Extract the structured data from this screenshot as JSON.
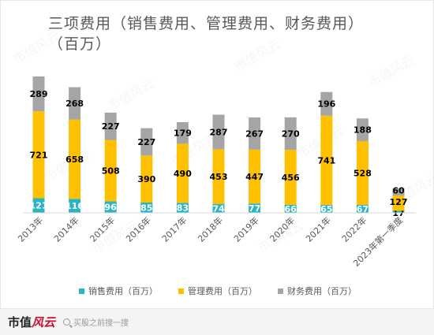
{
  "chart_data": {
    "type": "bar",
    "stacked": true,
    "title": "三项费用（销售费用、管理费用、财务费用）（百万）",
    "categories": [
      "2013年",
      "2014年",
      "2015年",
      "2016年",
      "2017年",
      "2018年",
      "2019年",
      "2020年",
      "2021年",
      "2022年",
      "2023年第一季度"
    ],
    "series": [
      {
        "name": "销售费用（百万）",
        "color": "#2bb5c2",
        "values": [
          121,
          116,
          96,
          85,
          83,
          74,
          77,
          66,
          65,
          67,
          17
        ]
      },
      {
        "name": "管理费用（百万）",
        "color": "#ffc000",
        "values": [
          721,
          658,
          508,
          390,
          490,
          453,
          447,
          456,
          741,
          528,
          127
        ]
      },
      {
        "name": "财务费用（百万）",
        "color": "#a5a5a5",
        "values": [
          289,
          268,
          227,
          227,
          179,
          287,
          267,
          270,
          196,
          188,
          60
        ]
      }
    ],
    "legend_position": "bottom",
    "grid": false,
    "data_labels": true
  },
  "watermark": "市值风云",
  "footer": {
    "logo_main": "市值",
    "logo_accent": "风云",
    "search_text": "买股之前搜一搜"
  }
}
